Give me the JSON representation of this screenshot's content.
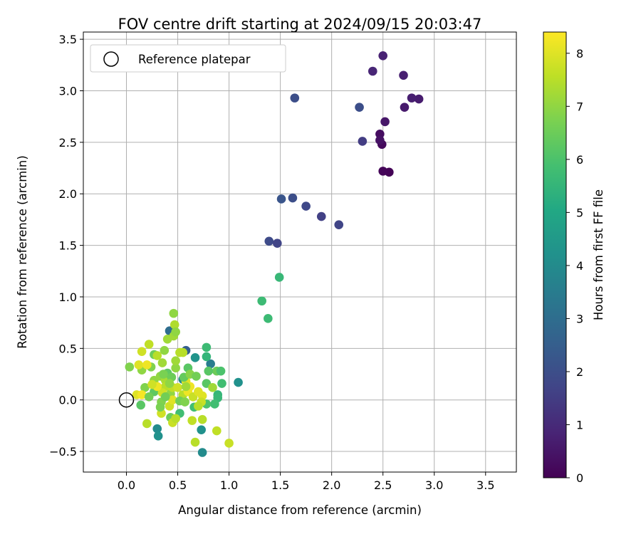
{
  "chart_data": {
    "type": "scatter",
    "title": "FOV centre drift starting at 2024/09/15 20:03:47",
    "xlabel": "Angular distance from reference (arcmin)",
    "ylabel": "Rotation from reference (arcmin)",
    "xlim": [
      -0.42,
      3.8
    ],
    "ylim": [
      -0.7,
      3.57
    ],
    "xticks": [
      0.0,
      0.5,
      1.0,
      1.5,
      2.0,
      2.5,
      3.0,
      3.5
    ],
    "xtick_labels": [
      "0.0",
      "0.5",
      "1.0",
      "1.5",
      "2.0",
      "2.5",
      "3.0",
      "3.5"
    ],
    "yticks": [
      -0.5,
      0.0,
      0.5,
      1.0,
      1.5,
      2.0,
      2.5,
      3.0,
      3.5
    ],
    "ytick_labels": [
      "−0.5",
      "0.0",
      "0.5",
      "1.0",
      "1.5",
      "2.0",
      "2.5",
      "3.0",
      "3.5"
    ],
    "grid": true,
    "legend": {
      "location": "upper-left",
      "entries": [
        "Reference platepar"
      ]
    },
    "reference_point": {
      "x": 0.0,
      "y": 0.0
    },
    "colorbar": {
      "label": "Hours from first FF file",
      "colormap": "viridis",
      "range": [
        0,
        8.4
      ],
      "ticks": [
        0,
        1,
        2,
        3,
        4,
        5,
        6,
        7,
        8
      ],
      "tick_labels": [
        "0",
        "1",
        "2",
        "3",
        "4",
        "5",
        "6",
        "7",
        "8"
      ]
    },
    "points": [
      {
        "x": 2.56,
        "y": 2.21,
        "c": 0.05
      },
      {
        "x": 2.5,
        "y": 2.22,
        "c": 0.1
      },
      {
        "x": 2.49,
        "y": 2.48,
        "c": 0.2
      },
      {
        "x": 2.47,
        "y": 2.58,
        "c": 0.3
      },
      {
        "x": 2.47,
        "y": 2.52,
        "c": 0.4
      },
      {
        "x": 2.52,
        "y": 2.7,
        "c": 0.5
      },
      {
        "x": 2.71,
        "y": 2.84,
        "c": 0.6
      },
      {
        "x": 2.85,
        "y": 2.92,
        "c": 0.65
      },
      {
        "x": 2.78,
        "y": 2.93,
        "c": 0.7
      },
      {
        "x": 2.7,
        "y": 3.15,
        "c": 0.75
      },
      {
        "x": 2.5,
        "y": 3.34,
        "c": 0.8
      },
      {
        "x": 2.4,
        "y": 3.19,
        "c": 0.9
      },
      {
        "x": 2.3,
        "y": 2.51,
        "c": 1.5
      },
      {
        "x": 2.27,
        "y": 2.84,
        "c": 2.0
      },
      {
        "x": 1.64,
        "y": 2.93,
        "c": 2.0
      },
      {
        "x": 2.07,
        "y": 1.7,
        "c": 1.7
      },
      {
        "x": 1.9,
        "y": 1.78,
        "c": 1.6
      },
      {
        "x": 1.75,
        "y": 1.88,
        "c": 1.8
      },
      {
        "x": 1.62,
        "y": 1.96,
        "c": 2.0
      },
      {
        "x": 1.51,
        "y": 1.95,
        "c": 2.2
      },
      {
        "x": 1.39,
        "y": 1.54,
        "c": 1.9
      },
      {
        "x": 1.47,
        "y": 1.52,
        "c": 1.7
      },
      {
        "x": 1.49,
        "y": 1.19,
        "c": 5.6
      },
      {
        "x": 1.32,
        "y": 0.96,
        "c": 5.7
      },
      {
        "x": 1.38,
        "y": 0.79,
        "c": 5.7
      },
      {
        "x": 1.09,
        "y": 0.17,
        "c": 4.2
      },
      {
        "x": 0.82,
        "y": 0.35,
        "c": 3.5
      },
      {
        "x": 0.58,
        "y": 0.48,
        "c": 2.5
      },
      {
        "x": 0.42,
        "y": 0.67,
        "c": 3.0
      },
      {
        "x": 0.67,
        "y": 0.41,
        "c": 4.3
      },
      {
        "x": 0.78,
        "y": 0.51,
        "c": 5.7
      },
      {
        "x": 0.78,
        "y": 0.42,
        "c": 5.5
      },
      {
        "x": 0.73,
        "y": -0.29,
        "c": 4.2
      },
      {
        "x": 0.74,
        "y": -0.51,
        "c": 4.0
      },
      {
        "x": 0.3,
        "y": -0.28,
        "c": 4.0
      },
      {
        "x": 0.31,
        "y": -0.35,
        "c": 4.2
      },
      {
        "x": 0.55,
        "y": 0.2,
        "c": 4.0
      },
      {
        "x": 0.88,
        "y": 0.28,
        "c": 6.5
      },
      {
        "x": 0.92,
        "y": 0.28,
        "c": 6.0
      },
      {
        "x": 0.93,
        "y": 0.16,
        "c": 5.8
      },
      {
        "x": 0.89,
        "y": 0.05,
        "c": 5.5
      },
      {
        "x": 0.89,
        "y": 0.02,
        "c": 5.6
      },
      {
        "x": 0.86,
        "y": -0.04,
        "c": 5.8
      },
      {
        "x": 0.78,
        "y": -0.04,
        "c": 6.0
      },
      {
        "x": 0.78,
        "y": 0.16,
        "c": 6.2
      },
      {
        "x": 0.8,
        "y": 0.28,
        "c": 6.2
      },
      {
        "x": 0.6,
        "y": 0.31,
        "c": 6.2
      },
      {
        "x": 0.66,
        "y": -0.07,
        "c": 5.8
      },
      {
        "x": 0.52,
        "y": -0.13,
        "c": 5.8
      },
      {
        "x": 0.43,
        "y": -0.17,
        "c": 6.5
      },
      {
        "x": 0.34,
        "y": -0.02,
        "c": 6.8
      },
      {
        "x": 0.27,
        "y": 0.08,
        "c": 6.3
      },
      {
        "x": 0.18,
        "y": 0.12,
        "c": 6.8
      },
      {
        "x": 0.14,
        "y": -0.05,
        "c": 6.2
      },
      {
        "x": 0.03,
        "y": 0.32,
        "c": 6.8
      },
      {
        "x": 0.15,
        "y": 0.29,
        "c": 7.0
      },
      {
        "x": 0.24,
        "y": 0.32,
        "c": 6.8
      },
      {
        "x": 0.27,
        "y": 0.44,
        "c": 6.5
      },
      {
        "x": 0.37,
        "y": 0.48,
        "c": 7.0
      },
      {
        "x": 0.4,
        "y": 0.59,
        "c": 7.2
      },
      {
        "x": 0.46,
        "y": 0.62,
        "c": 7.2
      },
      {
        "x": 0.47,
        "y": 0.73,
        "c": 7.4
      },
      {
        "x": 0.46,
        "y": 0.84,
        "c": 7.0
      },
      {
        "x": 0.48,
        "y": 0.66,
        "c": 7.0
      },
      {
        "x": 0.48,
        "y": 0.31,
        "c": 7.0
      },
      {
        "x": 0.48,
        "y": 0.38,
        "c": 7.2
      },
      {
        "x": 0.52,
        "y": 0.46,
        "c": 7.5
      },
      {
        "x": 0.55,
        "y": 0.46,
        "c": 7.5
      },
      {
        "x": 0.3,
        "y": 0.43,
        "c": 7.5
      },
      {
        "x": 0.35,
        "y": 0.36,
        "c": 7.2
      },
      {
        "x": 0.22,
        "y": 0.54,
        "c": 7.6
      },
      {
        "x": 0.15,
        "y": 0.47,
        "c": 7.8
      },
      {
        "x": 0.12,
        "y": 0.34,
        "c": 8.0
      },
      {
        "x": 0.2,
        "y": 0.34,
        "c": 8.2
      },
      {
        "x": 0.27,
        "y": 0.19,
        "c": 7.0
      },
      {
        "x": 0.33,
        "y": 0.23,
        "c": 7.0
      },
      {
        "x": 0.38,
        "y": 0.19,
        "c": 7.3
      },
      {
        "x": 0.38,
        "y": 0.13,
        "c": 7.5
      },
      {
        "x": 0.43,
        "y": 0.06,
        "c": 7.0
      },
      {
        "x": 0.45,
        "y": 0.12,
        "c": 7.6
      },
      {
        "x": 0.5,
        "y": 0.12,
        "c": 7.8
      },
      {
        "x": 0.55,
        "y": 0.05,
        "c": 7.5
      },
      {
        "x": 0.58,
        "y": 0.18,
        "c": 8.0
      },
      {
        "x": 0.6,
        "y": 0.08,
        "c": 8.2
      },
      {
        "x": 0.62,
        "y": 0.13,
        "c": 8.2
      },
      {
        "x": 0.65,
        "y": 0.03,
        "c": 7.7
      },
      {
        "x": 0.7,
        "y": 0.08,
        "c": 8.0
      },
      {
        "x": 0.74,
        "y": 0.04,
        "c": 8.0
      },
      {
        "x": 0.73,
        "y": -0.02,
        "c": 7.7
      },
      {
        "x": 0.7,
        "y": -0.06,
        "c": 7.5
      },
      {
        "x": 0.74,
        "y": -0.19,
        "c": 7.5
      },
      {
        "x": 0.64,
        "y": -0.2,
        "c": 7.6
      },
      {
        "x": 0.67,
        "y": -0.41,
        "c": 7.5
      },
      {
        "x": 0.88,
        "y": -0.3,
        "c": 7.6
      },
      {
        "x": 1.0,
        "y": -0.42,
        "c": 7.7
      },
      {
        "x": 0.34,
        "y": -0.13,
        "c": 7.8
      },
      {
        "x": 0.45,
        "y": -0.22,
        "c": 7.7
      },
      {
        "x": 0.48,
        "y": -0.18,
        "c": 7.5
      },
      {
        "x": 0.2,
        "y": -0.23,
        "c": 7.5
      },
      {
        "x": 0.42,
        "y": -0.06,
        "c": 7.8
      },
      {
        "x": 0.45,
        "y": 0.0,
        "c": 8.0
      },
      {
        "x": 0.35,
        "y": 0.07,
        "c": 7.8
      },
      {
        "x": 0.3,
        "y": 0.13,
        "c": 8.2
      },
      {
        "x": 0.25,
        "y": 0.15,
        "c": 7.8
      },
      {
        "x": 0.1,
        "y": 0.05,
        "c": 8.0
      },
      {
        "x": 0.15,
        "y": 0.05,
        "c": 8.3
      },
      {
        "x": 0.22,
        "y": 0.03,
        "c": 6.6
      },
      {
        "x": 0.33,
        "y": -0.07,
        "c": 6.7
      },
      {
        "x": 0.38,
        "y": 0.03,
        "c": 6.6
      },
      {
        "x": 0.52,
        "y": -0.01,
        "c": 6.6
      },
      {
        "x": 0.57,
        "y": -0.02,
        "c": 6.8
      },
      {
        "x": 0.4,
        "y": 0.26,
        "c": 6.3
      },
      {
        "x": 0.44,
        "y": 0.22,
        "c": 6.5
      },
      {
        "x": 0.36,
        "y": 0.25,
        "c": 6.7
      },
      {
        "x": 0.56,
        "y": 0.22,
        "c": 6.4
      },
      {
        "x": 0.62,
        "y": 0.25,
        "c": 6.9
      },
      {
        "x": 0.68,
        "y": 0.23,
        "c": 6.6
      },
      {
        "x": 0.84,
        "y": 0.12,
        "c": 7.2
      },
      {
        "x": 0.42,
        "y": 0.16,
        "c": 7.0
      },
      {
        "x": 0.58,
        "y": 0.13,
        "c": 7.2
      }
    ]
  }
}
